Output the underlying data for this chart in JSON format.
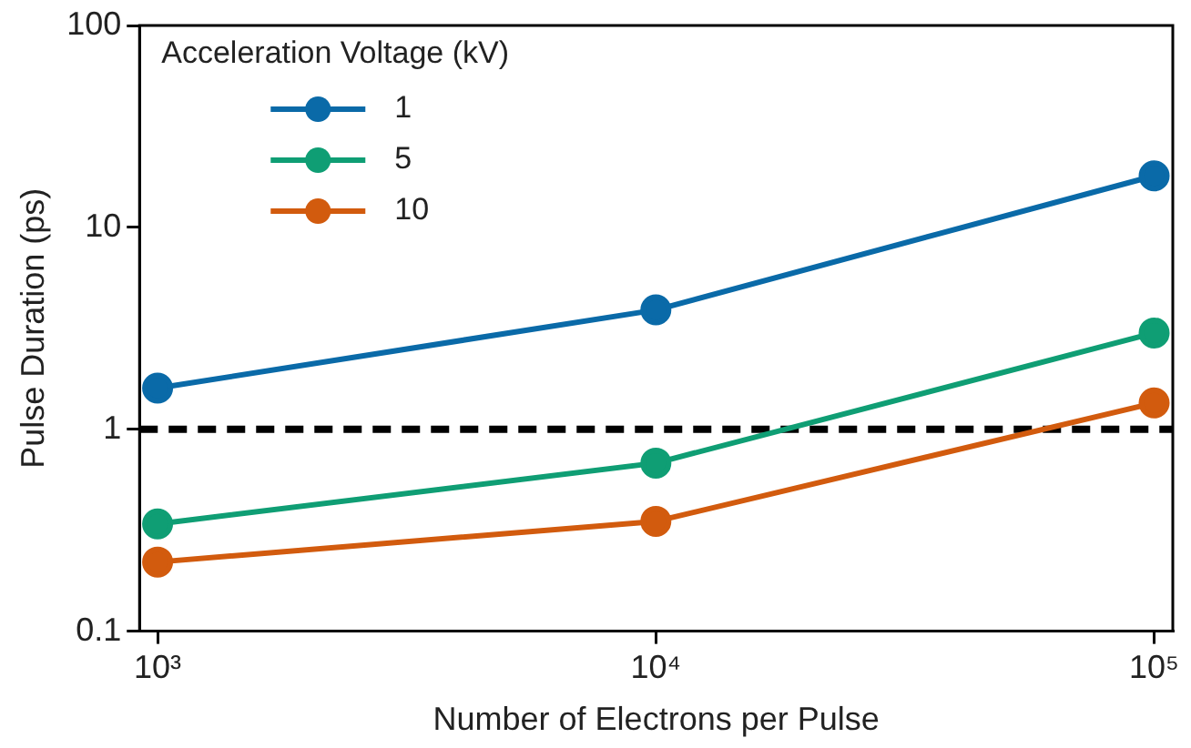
{
  "chart_data": {
    "type": "line",
    "xlabel": "Number of Electrons per Pulse",
    "ylabel": "Pulse Duration (ps)",
    "legend_title": "Acceleration Voltage (kV)",
    "legend": "top left",
    "log": "xy",
    "marker": "circle",
    "line_style": "solid",
    "grid": false,
    "x": [
      1000,
      10000,
      100000
    ],
    "xlim": [
      920,
      109000
    ],
    "xticks": [
      {
        "value": 1000,
        "label": "10³"
      },
      {
        "value": 10000,
        "label": "10⁴"
      },
      {
        "value": 100000,
        "label": "10⁵"
      }
    ],
    "ylim": [
      0.1,
      100
    ],
    "yticks": [
      0.1,
      1,
      10,
      100
    ],
    "series": [
      {
        "name": "1",
        "color": "#0a6aa8",
        "values": [
          1.6,
          3.9,
          18
        ]
      },
      {
        "name": "5",
        "color": "#0f9e74",
        "values": [
          0.34,
          0.68,
          3.0
        ]
      },
      {
        "name": "10",
        "color": "#d25b0e",
        "values": [
          0.22,
          0.35,
          1.35
        ]
      }
    ],
    "ref_lines": [
      {
        "axis": "y",
        "value": 1,
        "color": "#000000",
        "line_style": "dashed"
      }
    ]
  }
}
